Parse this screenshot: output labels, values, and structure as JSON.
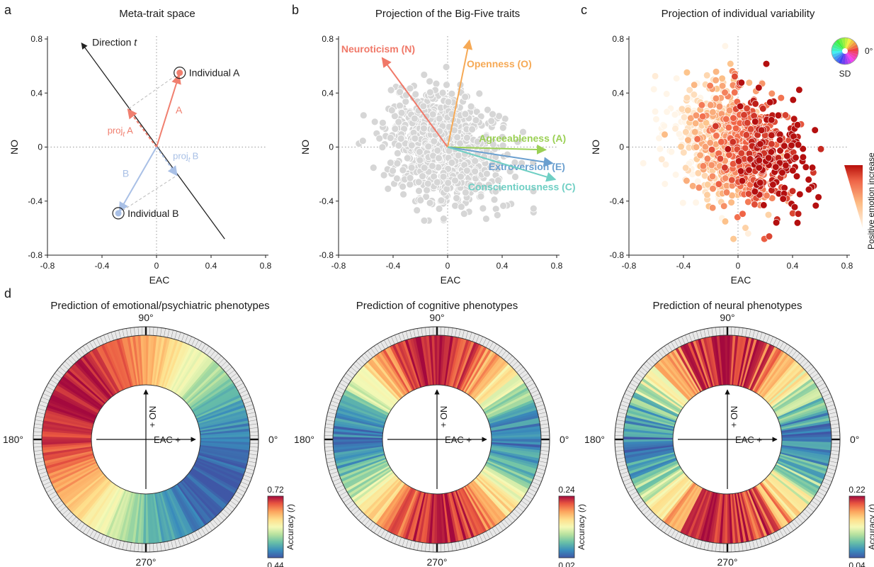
{
  "colors": {
    "axis": "#222222",
    "zero_line": "#9a9a9a",
    "panel_a_red": "#f07f6f",
    "panel_a_blue": "#a9c0e6",
    "neuroticism": "#f07868",
    "openness": "#f6a955",
    "agreeableness": "#9bd055",
    "extroversion": "#6a9fcf",
    "conscientiousness": "#6fcfc4",
    "scatter_gray": "#d6d6d6"
  },
  "panel_labels": [
    "a",
    "b",
    "c",
    "d"
  ],
  "chart_data": [
    {
      "id": "a",
      "type": "scatter",
      "title": "Meta-trait space",
      "xlabel": "EAC",
      "ylabel": "NO",
      "xlim": [
        -0.8,
        0.8
      ],
      "ylim": [
        -0.8,
        0.8
      ],
      "xticks": [
        "-0.8",
        "-0.4",
        "0",
        "0.4",
        "0.8"
      ],
      "yticks": [
        "-0.8",
        "-0.4",
        "0",
        "0.4",
        "0.8"
      ],
      "direction_line": {
        "from": [
          0.5,
          -0.68
        ],
        "to": [
          -0.55,
          0.77
        ],
        "label": "Direction",
        "label_italic": "t"
      },
      "points": [
        {
          "name": "Individual A",
          "x": 0.17,
          "y": 0.55
        },
        {
          "name": "Individual B",
          "x": -0.28,
          "y": -0.49
        }
      ],
      "vectors": [
        {
          "name": "A",
          "x": 0.17,
          "y": 0.55,
          "color": "#f07f6f"
        },
        {
          "name": "B",
          "x": -0.28,
          "y": -0.49,
          "color": "#a9c0e6"
        }
      ],
      "projections": [
        {
          "label": "proj",
          "sub": "t",
          "tail": "A",
          "x": -0.21,
          "y": 0.28,
          "color": "#f07f6f"
        },
        {
          "label": "proj",
          "sub": "t",
          "tail": "B",
          "x": 0.15,
          "y": -0.21,
          "color": "#a9c0e6"
        }
      ],
      "vector_labels": [
        "A",
        "B"
      ]
    },
    {
      "id": "b",
      "type": "scatter",
      "title": "Projection of the Big-Five traits",
      "xlabel": "EAC",
      "ylabel": "NO",
      "xlim": [
        -0.8,
        0.8
      ],
      "ylim": [
        -0.8,
        0.8
      ],
      "xticks": [
        "-0.8",
        "-0.4",
        "0",
        "0.4",
        "0.8"
      ],
      "yticks": [
        "-0.8",
        "-0.4",
        "0",
        "0.4",
        "0.8"
      ],
      "n_points": 900,
      "vectors": [
        {
          "name": "Neuroticism (N)",
          "x": -0.48,
          "y": 0.66
        },
        {
          "name": "Openness (O)",
          "x": 0.16,
          "y": 0.79
        },
        {
          "name": "Agreeableness (A)",
          "x": 0.72,
          "y": -0.02
        },
        {
          "name": "Extroversion (E)",
          "x": 0.77,
          "y": -0.12
        },
        {
          "name": "Conscientiousness (C)",
          "x": 0.79,
          "y": -0.24
        }
      ]
    },
    {
      "id": "c",
      "type": "scatter",
      "title": "Projection of individual variability",
      "xlabel": "EAC",
      "ylabel": "NO",
      "xlim": [
        -0.8,
        0.8
      ],
      "ylim": [
        -0.8,
        0.8
      ],
      "xticks": [
        "-0.8",
        "-0.4",
        "0",
        "0.4",
        "0.8"
      ],
      "yticks": [
        "-0.8",
        "-0.4",
        "0",
        "0.4",
        "0.8"
      ],
      "n_points": 1000,
      "colorbar_label": "Positive emotion increase",
      "inset_angle_label": "0°",
      "inset_label": "SD"
    },
    {
      "id": "d1",
      "type": "heatmap",
      "title": "Prediction of emotional/psychiatric phenotypes",
      "angle_labels": [
        "0°",
        "90°",
        "180°",
        "270°"
      ],
      "colorbar_label": "Accuracy",
      "colorbar_var": "r",
      "vmin": 0.44,
      "vmax": 0.72,
      "vmin_label": "0.44",
      "vmax_label": "0.72",
      "angle_profile": {
        "peak_deg": 150,
        "noise": 0.06
      },
      "axis_labels": {
        "x": "EAC +",
        "y": "NO +"
      }
    },
    {
      "id": "d2",
      "type": "heatmap",
      "title": "Prediction of cognitive phenotypes",
      "angle_labels": [
        "0°",
        "90°",
        "180°",
        "270°"
      ],
      "colorbar_label": "Accuracy",
      "colorbar_var": "r",
      "vmin": 0.02,
      "vmax": 0.24,
      "vmin_label": "0.02",
      "vmax_label": "0.24",
      "angle_profile": {
        "peak_deg": 90,
        "noise": 0.1
      },
      "axis_labels": {
        "x": "EAC +",
        "y": "NO +"
      }
    },
    {
      "id": "d3",
      "type": "heatmap",
      "title": "Prediction of neural phenotypes",
      "angle_labels": [
        "0°",
        "90°",
        "180°",
        "270°"
      ],
      "colorbar_label": "Accuracy",
      "colorbar_var": "r",
      "vmin": 0.04,
      "vmax": 0.22,
      "vmin_label": "0.04",
      "vmax_label": "0.22",
      "angle_profile": {
        "peak_deg": 90,
        "noise": 0.14
      },
      "axis_labels": {
        "x": "EAC +",
        "y": "NO +"
      }
    }
  ]
}
